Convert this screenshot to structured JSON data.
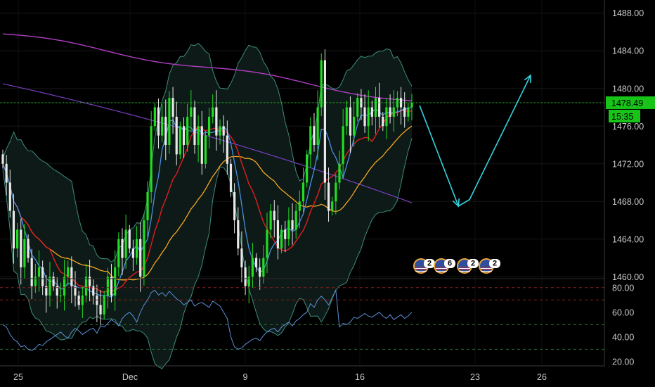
{
  "chart_data": [
    {
      "type": "candlestick",
      "x_ticks": [
        "25",
        "Dec",
        "9",
        "16",
        "23",
        "26"
      ],
      "price_ticks": [
        1460,
        1464,
        1468,
        1472,
        1476,
        1480,
        1484,
        1488
      ],
      "price_tick_labels": [
        "1460.00",
        "1464.00",
        "1468.00",
        "1472.00",
        "1476.00",
        "1480.00",
        "1484.00",
        "1488.00"
      ],
      "ylim": [
        1459.8,
        1489.4
      ],
      "last_price": 1478.49,
      "last_price_label": "1478.49",
      "countdown_label": "15:35",
      "closes": [
        1472,
        1470,
        1467,
        1463,
        1465,
        1461,
        1464,
        1462,
        1459,
        1460,
        1461,
        1459,
        1458,
        1460,
        1459,
        1458,
        1458,
        1460,
        1461,
        1459,
        1458,
        1457,
        1458,
        1460,
        1459,
        1458,
        1457,
        1456,
        1458,
        1460,
        1458,
        1461,
        1464,
        1462,
        1465,
        1463,
        1462,
        1464,
        1460,
        1466,
        1469,
        1476,
        1478,
        1475,
        1477,
        1474,
        1479,
        1477,
        1473,
        1476,
        1474,
        1477,
        1478,
        1474,
        1476,
        1472,
        1475,
        1477,
        1478,
        1475,
        1476,
        1475,
        1472,
        1469,
        1466,
        1463,
        1461,
        1459,
        1460,
        1462,
        1461,
        1460,
        1462,
        1465,
        1467,
        1466,
        1463,
        1465,
        1464,
        1466,
        1465,
        1467,
        1468,
        1470,
        1473,
        1476,
        1474,
        1478,
        1483,
        1470,
        1467,
        1468,
        1470,
        1472,
        1476,
        1478,
        1475,
        1477,
        1479,
        1478,
        1476,
        1478,
        1477,
        1479,
        1477,
        1476,
        1478,
        1477,
        1478,
        1479,
        1478,
        1477,
        1478,
        1478.49
      ],
      "overlays": [
        {
          "color": "#b03ec2",
          "description": "purple moving average"
        },
        {
          "color": "#7a3fc2",
          "description": "violet moving average"
        },
        {
          "color": "#e01f1f",
          "description": "red moving average"
        },
        {
          "color": "#f5a623",
          "description": "orange moving average"
        },
        {
          "color": "#4c8fe0",
          "description": "blue moving average"
        },
        {
          "color": "#3d8c7a",
          "description": "bollinger bands"
        }
      ],
      "projection": {
        "color": "#32d4e0",
        "points": [
          [
            0,
            1478.2
          ],
          [
            0.35,
            1467.5
          ],
          [
            0.45,
            1468.2
          ],
          [
            1,
            1481.4
          ]
        ]
      },
      "events": [
        {
          "flag": "us-flag-icon",
          "label": "2"
        },
        {
          "flag": "us-flag-icon",
          "label": "6"
        },
        {
          "flag": "us-flag-icon",
          "label": "2"
        },
        {
          "flag": "us-flag-icon",
          "label": "2"
        }
      ]
    },
    {
      "type": "line",
      "name": "RSI",
      "y_ticks": [
        20,
        40,
        60,
        80
      ],
      "y_tick_labels": [
        "20.00",
        "40.00",
        "60.00",
        "80.00"
      ],
      "ylim": [
        16.5,
        85
      ],
      "reference_levels": [
        30,
        50,
        70,
        80
      ],
      "color": "#5b8fd6",
      "values": [
        50,
        48,
        42,
        38,
        36,
        32,
        33,
        30,
        29,
        31,
        34,
        33,
        36,
        38,
        40,
        42,
        44,
        41,
        39,
        44,
        47,
        45,
        42,
        44,
        46,
        47,
        43,
        49,
        48,
        51,
        54,
        52,
        49,
        55,
        58,
        60,
        57,
        52,
        60,
        66,
        70,
        76,
        78,
        74,
        76,
        73,
        77,
        74,
        71,
        69,
        66,
        68,
        70,
        65,
        67,
        68,
        66,
        64,
        69,
        67,
        65,
        60,
        55,
        40,
        32,
        30,
        31,
        34,
        36,
        38,
        39,
        37,
        41,
        44,
        46,
        47,
        44,
        48,
        50,
        52,
        49,
        53,
        55,
        58,
        60,
        67,
        64,
        70,
        73,
        70,
        66,
        72,
        78,
        48,
        51,
        50,
        52,
        56,
        55,
        57,
        59,
        57,
        56,
        58,
        60,
        57,
        55,
        58,
        54,
        56,
        58,
        55,
        57,
        60
      ]
    }
  ]
}
